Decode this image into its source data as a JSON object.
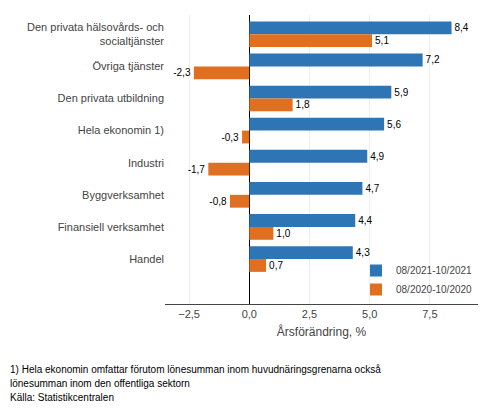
{
  "chart_data": {
    "type": "bar",
    "orientation": "horizontal",
    "categories": [
      "Den privata hälsovårds- och\nsocialtjänster",
      "Övriga tjänster",
      "Den privata utbildning",
      "Hela ekonomin 1)",
      "Industri",
      "Byggverksamhet",
      "Finansiell verksamhet",
      "Handel"
    ],
    "series": [
      {
        "name": "08/2021-10/2021",
        "color": "#2E75B6",
        "values": [
          8.4,
          7.2,
          5.9,
          5.6,
          4.9,
          4.7,
          4.4,
          4.3
        ],
        "value_labels": [
          "8,4",
          "7,2",
          "5,9",
          "5,6",
          "4,9",
          "4,7",
          "4,4",
          "4,3"
        ]
      },
      {
        "name": "08/2020-10/2020",
        "color": "#E07020",
        "values": [
          5.1,
          -2.3,
          1.8,
          -0.3,
          -1.7,
          -0.8,
          1.0,
          0.7
        ],
        "value_labels": [
          "5,1",
          "-2,3",
          "1,8",
          "-0,3",
          "-1,7",
          "-0,8",
          "1,0",
          "0,7"
        ]
      }
    ],
    "xlabel": "Årsförändring, %",
    "xlim": [
      -3.5,
      9.5
    ],
    "xticks": [
      {
        "value": -2.5,
        "label": "−2,5"
      },
      {
        "value": 0.0,
        "label": "0,0"
      },
      {
        "value": 2.5,
        "label": "2,5"
      },
      {
        "value": 5.0,
        "label": "5,0"
      },
      {
        "value": 7.5,
        "label": "7,5"
      }
    ],
    "grid": true,
    "legend": "lower right",
    "data_labels": true,
    "annotations": [
      "1) Hela ekonomin omfattar förutom lönesumman inom huvudnäringsgrenarna också",
      "lönesumman inom den offentliga sektorn",
      "Källa: Statistikcentralen"
    ]
  }
}
